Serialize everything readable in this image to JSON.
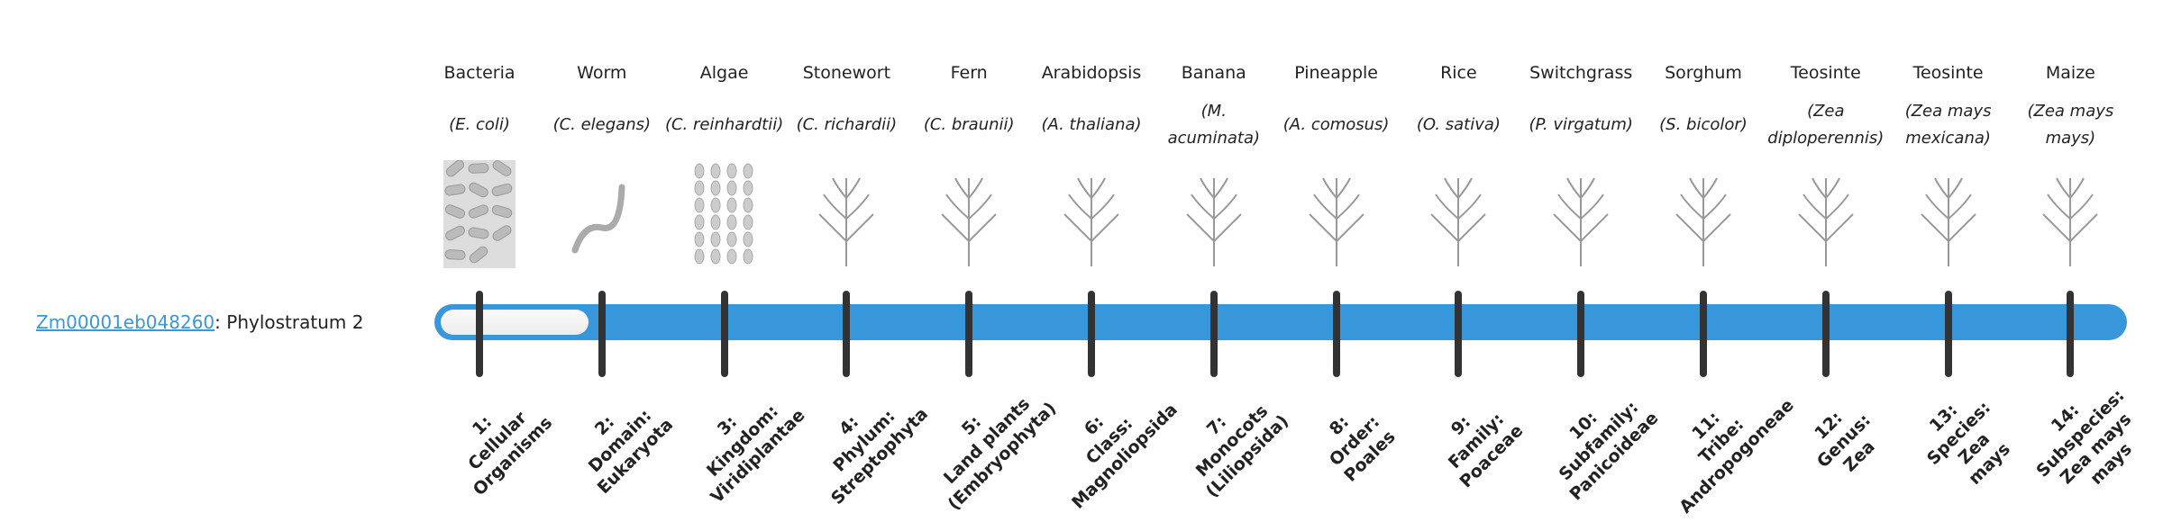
{
  "gene": {
    "id": "Zm00001eb048260",
    "suffix": ": Phylostratum 2",
    "phylostratum": 2,
    "total_strata": 14
  },
  "colors": {
    "bar": "#3897da",
    "tick": "#333333",
    "link": "#3a97d8"
  },
  "organisms": [
    {
      "name": "Bacteria",
      "species": "(E. coli)",
      "icon": "bacteria-illustration"
    },
    {
      "name": "Worm",
      "species": "(C. elegans)",
      "icon": "worm-illustration"
    },
    {
      "name": "Algae",
      "species": "(C. reinhardtii)",
      "icon": "algae-illustration"
    },
    {
      "name": "Stonewort",
      "species": "(C. richardii)",
      "icon": "stonewort-illustration"
    },
    {
      "name": "Fern",
      "species": "(C. braunii)",
      "icon": "fern-illustration"
    },
    {
      "name": "Arabidopsis",
      "species": "(A. thaliana)",
      "icon": "arabidopsis-illustration"
    },
    {
      "name": "Banana",
      "species": "(M. acuminata)",
      "icon": "banana-illustration"
    },
    {
      "name": "Pineapple",
      "species": "(A. comosus)",
      "icon": "pineapple-illustration"
    },
    {
      "name": "Rice",
      "species": "(O. sativa)",
      "icon": "rice-illustration"
    },
    {
      "name": "Switchgrass",
      "species": "(P. virgatum)",
      "icon": "switchgrass-illustration"
    },
    {
      "name": "Sorghum",
      "species": "(S. bicolor)",
      "icon": "sorghum-illustration"
    },
    {
      "name": "Teosinte",
      "species": "(Zea diploperennis)",
      "icon": "teosinte-illustration"
    },
    {
      "name": "Teosinte",
      "species": "(Zea mays mexicana)",
      "icon": "teosinte-illustration"
    },
    {
      "name": "Maize",
      "species": "(Zea mays mays)",
      "icon": "maize-illustration"
    }
  ],
  "strata": [
    [
      "1:",
      "Cellular",
      "Organisms"
    ],
    [
      "2:",
      "Domain:",
      "Eukaryota"
    ],
    [
      "3:",
      "Kingdom:",
      "Viridiplantae"
    ],
    [
      "4:",
      "Phylum:",
      "Streptophyta"
    ],
    [
      "5:",
      "Land plants",
      "(Embryophyta)"
    ],
    [
      "6:",
      "Class:",
      "Magnoliopsida"
    ],
    [
      "7:",
      "Monocots",
      "(Liliopsida)"
    ],
    [
      "8:",
      "Order:",
      "Poales"
    ],
    [
      "9:",
      "Family:",
      "Poaceae"
    ],
    [
      "10:",
      "Subfamily:",
      "Panicoideae"
    ],
    [
      "11:",
      "Tribe:",
      "Andropogoneae"
    ],
    [
      "12:",
      "Genus:",
      "Zea"
    ],
    [
      "13:",
      "Species:",
      "Zea",
      "mays"
    ],
    [
      "14:",
      "Subspecies:",
      "Zea mays",
      "mays"
    ]
  ]
}
